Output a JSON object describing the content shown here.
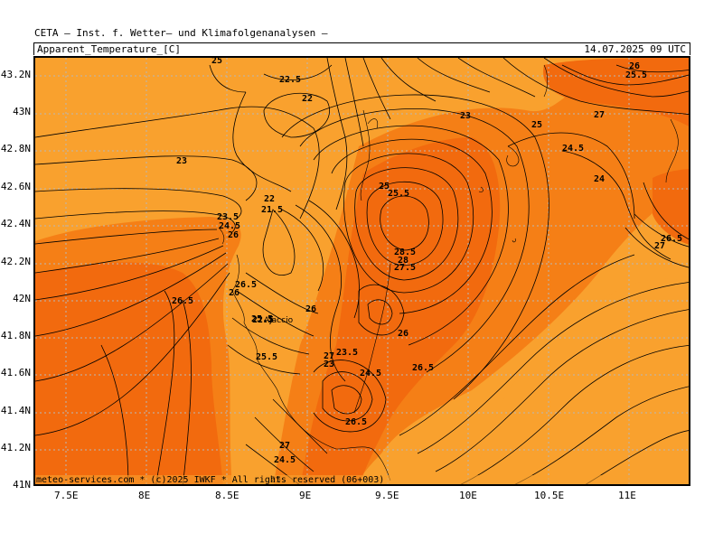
{
  "header": {
    "institute": "CETA — Inst. f. Wetter— und Klimafolgenanalysen —",
    "parameter": "Apparent_Temperature_[C]",
    "valid_time": "14.07.2025 09 UTC"
  },
  "credit": "meteo-services.com * (c)2025 IWKF * All rights reserved (06+003)",
  "axes": {
    "lat_labels": [
      "43.2N",
      "43N",
      "42.8N",
      "42.6N",
      "42.4N",
      "42.2N",
      "42N",
      "41.8N",
      "41.6N",
      "41.4N",
      "41.2N",
      "41N"
    ],
    "lon_labels": [
      "7.5E",
      "8E",
      "8.5E",
      "9E",
      "9.5E",
      "10E",
      "10.5E",
      "11E"
    ]
  },
  "place_label": "Ajaccio",
  "colors": {
    "light_orange": "#f9a12e",
    "mid_orange": "#f57f16",
    "dark_orange": "#f26a0e"
  },
  "contour_labels": [
    "25",
    "22.5",
    "22",
    "23",
    "23",
    "25",
    "27",
    "26",
    "25.5",
    "24.5",
    "24",
    "26.5",
    "27",
    "22",
    "21.5",
    "23.5",
    "24.5",
    "26",
    "25",
    "25.5",
    "26.5",
    "26",
    "28.5",
    "28",
    "27.5",
    "26.5",
    "26",
    "22.5",
    "25.5",
    "26",
    "27",
    "23.5",
    "23",
    "24.5",
    "26.5",
    "26.5",
    "27",
    "24.5",
    "25",
    "25.5"
  ]
}
